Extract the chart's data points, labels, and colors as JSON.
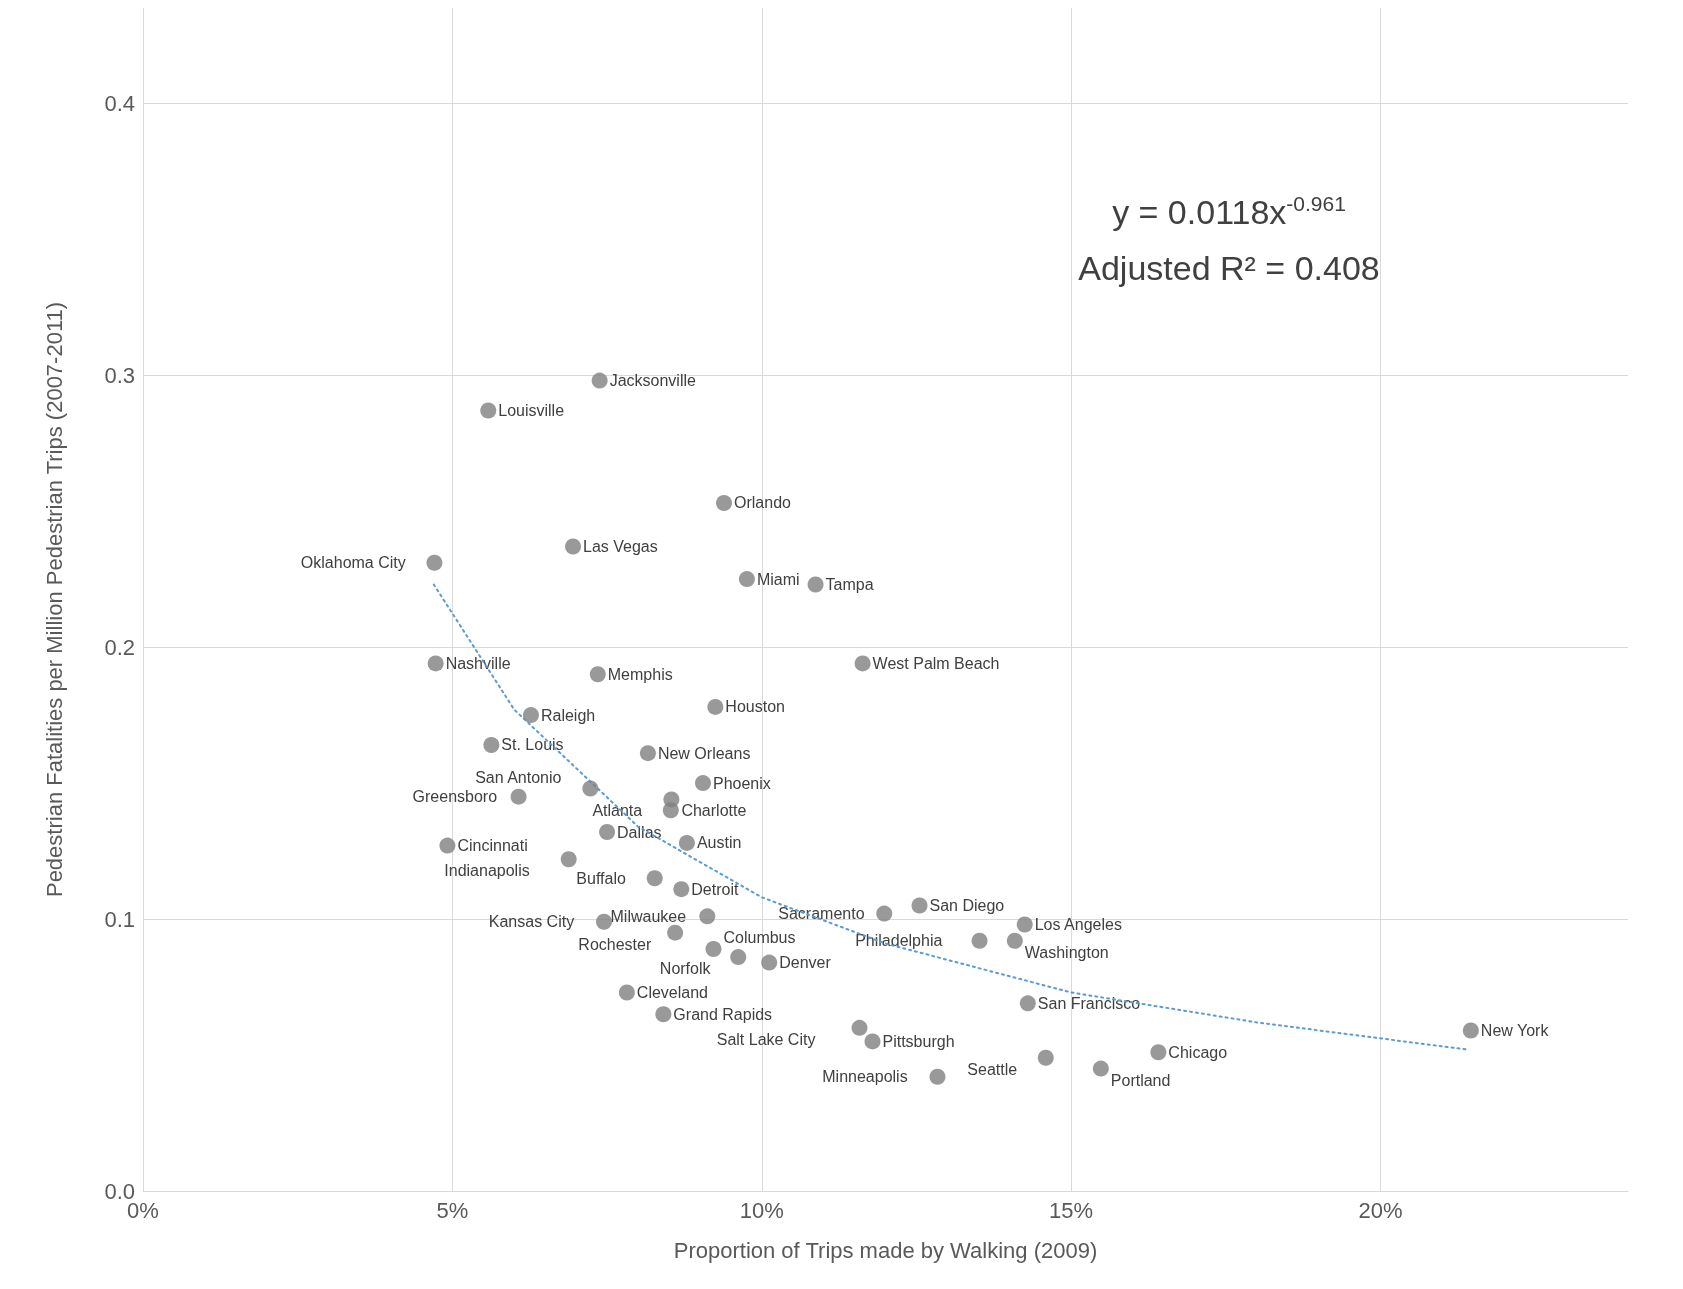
{
  "chart_data": {
    "type": "scatter",
    "xlabel": "Proportion of Trips made by Walking (2009)",
    "ylabel": "Pedestrian Fatalities per Million Pedestrian Trips (2007-2011)",
    "xlim": [
      0,
      24
    ],
    "xticks": [
      {
        "value": 0,
        "label": "0%"
      },
      {
        "value": 5,
        "label": "5%"
      },
      {
        "value": 10,
        "label": "10%"
      },
      {
        "value": 15,
        "label": "15%"
      },
      {
        "value": 20,
        "label": "20%"
      }
    ],
    "ylim": [
      0,
      0.435
    ],
    "yticks": [
      {
        "value": 0,
        "label": "0.0"
      },
      0.1,
      0.2,
      0.3,
      0.4
    ],
    "grid": true,
    "series": [
      {
        "type": "scatter",
        "color": "#7f7f7f",
        "marker": "circle",
        "x": [
          7.38,
          5.58,
          9.39,
          6.95,
          4.71,
          9.76,
          10.87,
          4.73,
          11.63,
          7.35,
          9.25,
          6.27,
          5.63,
          8.16,
          9.05,
          7.23,
          6.07,
          8.54,
          8.53,
          7.5,
          8.79,
          4.92,
          6.88,
          8.27,
          8.7,
          12.55,
          11.98,
          9.12,
          14.25,
          7.45,
          8.6,
          13.52,
          14.09,
          9.22,
          9.62,
          10.12,
          7.82,
          14.3,
          8.41,
          11.58,
          21.46,
          11.79,
          16.41,
          14.59,
          15.48,
          12.84
        ],
        "values": [
          0.298,
          0.287,
          0.253,
          0.237,
          0.231,
          0.225,
          0.223,
          0.194,
          0.194,
          0.19,
          0.178,
          0.175,
          0.164,
          0.161,
          0.15,
          0.148,
          0.145,
          0.144,
          0.14,
          0.132,
          0.128,
          0.127,
          0.122,
          0.115,
          0.111,
          0.105,
          0.102,
          0.101,
          0.098,
          0.099,
          0.095,
          0.092,
          0.092,
          0.089,
          0.086,
          0.084,
          0.073,
          0.069,
          0.065,
          0.06,
          0.059,
          0.055,
          0.051,
          0.049,
          0.045,
          0.042
        ]
      },
      {
        "type": "line",
        "color": "#5b9bd5",
        "marker": "none",
        "line_style": "dotted",
        "x": [
          4.7,
          6,
          8,
          10,
          12,
          15,
          18,
          21.4
        ],
        "values": [
          0.223,
          0.177,
          0.134,
          0.108,
          0.091,
          0.073,
          0.062,
          0.052
        ]
      }
    ],
    "annotations": [
      "y = 0.0118x$^{-0.961}$",
      "Adjusted R² = 0.408",
      {
        "text": "Jacksonville",
        "x": 7.38,
        "y": 0.298
      },
      {
        "text": "Louisville",
        "x": 5.58,
        "y": 0.287
      },
      {
        "text": "Orlando",
        "x": 9.39,
        "y": 0.253
      },
      {
        "text": "Las Vegas",
        "x": 6.95,
        "y": 0.237
      },
      {
        "text": "Oklahoma City",
        "x": 4.71,
        "y": 0.231
      },
      {
        "text": "Miami",
        "x": 9.76,
        "y": 0.225
      },
      {
        "text": "Tampa",
        "x": 10.87,
        "y": 0.223
      },
      {
        "text": "Nashville",
        "x": 4.73,
        "y": 0.194
      },
      {
        "text": "West Palm Beach",
        "x": 11.63,
        "y": 0.194
      },
      {
        "text": "Memphis",
        "x": 7.35,
        "y": 0.19
      },
      {
        "text": "Houston",
        "x": 9.25,
        "y": 0.178
      },
      {
        "text": "Raleigh",
        "x": 6.27,
        "y": 0.175
      },
      {
        "text": "St. Louis",
        "x": 5.63,
        "y": 0.164
      },
      {
        "text": "New Orleans",
        "x": 8.16,
        "y": 0.161
      },
      {
        "text": "Phoenix",
        "x": 9.05,
        "y": 0.15
      },
      {
        "text": "San Antonio",
        "x": 7.23,
        "y": 0.148
      },
      {
        "text": "Greensboro",
        "x": 6.07,
        "y": 0.145
      },
      {
        "text": "Charlotte",
        "x": 8.54,
        "y": 0.144
      },
      {
        "text": "Atlanta",
        "x": 8.53,
        "y": 0.14
      },
      {
        "text": "Dallas",
        "x": 7.5,
        "y": 0.132
      },
      {
        "text": "Austin",
        "x": 8.79,
        "y": 0.128
      },
      {
        "text": "Cincinnati",
        "x": 4.92,
        "y": 0.127
      },
      {
        "text": "Indianapolis",
        "x": 6.88,
        "y": 0.122
      },
      {
        "text": "Buffalo",
        "x": 8.27,
        "y": 0.115
      },
      {
        "text": "Detroit",
        "x": 8.7,
        "y": 0.111
      },
      {
        "text": "San Diego",
        "x": 12.55,
        "y": 0.105
      },
      {
        "text": "Sacramento",
        "x": 11.98,
        "y": 0.102
      },
      {
        "text": "Milwaukee",
        "x": 9.12,
        "y": 0.101
      },
      {
        "text": "Los Angeles",
        "x": 14.25,
        "y": 0.098
      },
      {
        "text": "Kansas City",
        "x": 7.45,
        "y": 0.099
      },
      {
        "text": "Rochester",
        "x": 8.6,
        "y": 0.095
      },
      {
        "text": "Philadelphia",
        "x": 13.52,
        "y": 0.092
      },
      {
        "text": "Washington",
        "x": 14.09,
        "y": 0.092
      },
      {
        "text": "Columbus",
        "x": 9.22,
        "y": 0.089
      },
      {
        "text": "Norfolk",
        "x": 9.62,
        "y": 0.086
      },
      {
        "text": "Denver",
        "x": 10.12,
        "y": 0.084
      },
      {
        "text": "Cleveland",
        "x": 7.82,
        "y": 0.073
      },
      {
        "text": "San Francisco",
        "x": 14.3,
        "y": 0.069
      },
      {
        "text": "Grand Rapids",
        "x": 8.41,
        "y": 0.065
      },
      {
        "text": "Salt Lake City",
        "x": 11.58,
        "y": 0.06
      },
      {
        "text": "New York",
        "x": 21.46,
        "y": 0.059
      },
      {
        "text": "Pittsburgh",
        "x": 11.79,
        "y": 0.055
      },
      {
        "text": "Chicago",
        "x": 16.41,
        "y": 0.051
      },
      {
        "text": "Seattle",
        "x": 14.59,
        "y": 0.049
      },
      {
        "text": "Portland",
        "x": 15.48,
        "y": 0.045
      },
      {
        "text": "Minneapolis",
        "x": 12.84,
        "y": 0.042
      }
    ]
  }
}
